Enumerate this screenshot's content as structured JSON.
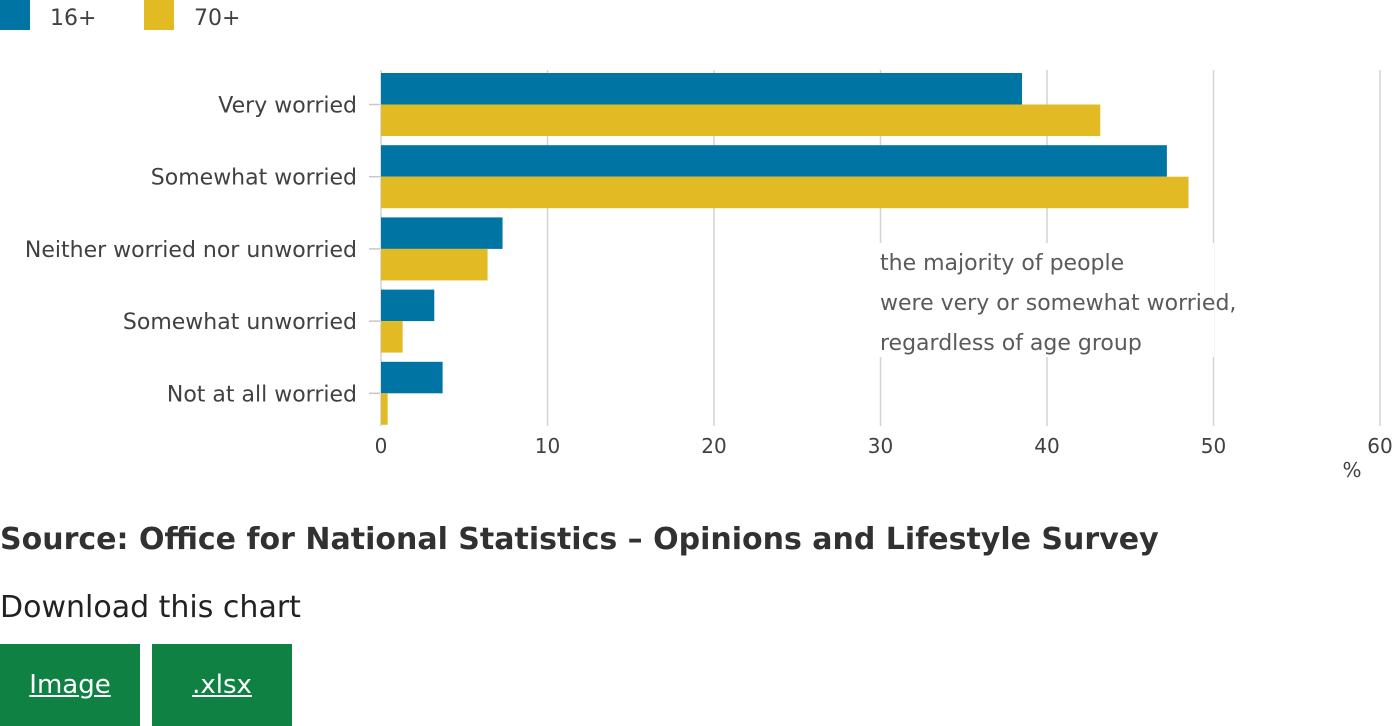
{
  "legend": [
    {
      "label": "16+",
      "color": "#0075a3"
    },
    {
      "label": "70+",
      "color": "#e2bb24"
    }
  ],
  "chart_data": {
    "type": "bar",
    "orientation": "horizontal",
    "categories": [
      "Very worried",
      "Somewhat worried",
      "Neither worried nor unworried",
      "Somewhat unworried",
      "Not at all worried"
    ],
    "series": [
      {
        "name": "16+",
        "color": "#0075a3",
        "values": [
          38.5,
          47.2,
          7.3,
          3.2,
          3.7
        ]
      },
      {
        "name": "70+",
        "color": "#e2bb24",
        "values": [
          43.2,
          48.5,
          6.4,
          1.3,
          0.4
        ]
      }
    ],
    "xlim": [
      0,
      60
    ],
    "xticks": [
      0,
      10,
      20,
      30,
      40,
      50,
      60
    ],
    "xlabel": "%",
    "grid": true,
    "legend_position": "top-left",
    "annotation": [
      "the majority of people",
      "were very or somewhat worried,",
      "regardless of age group"
    ]
  },
  "source": "Source: Office for National Statistics – Opinions and Lifestyle Survey",
  "download": {
    "title": "Download this chart",
    "buttons": [
      "Image",
      ".xlsx"
    ]
  }
}
